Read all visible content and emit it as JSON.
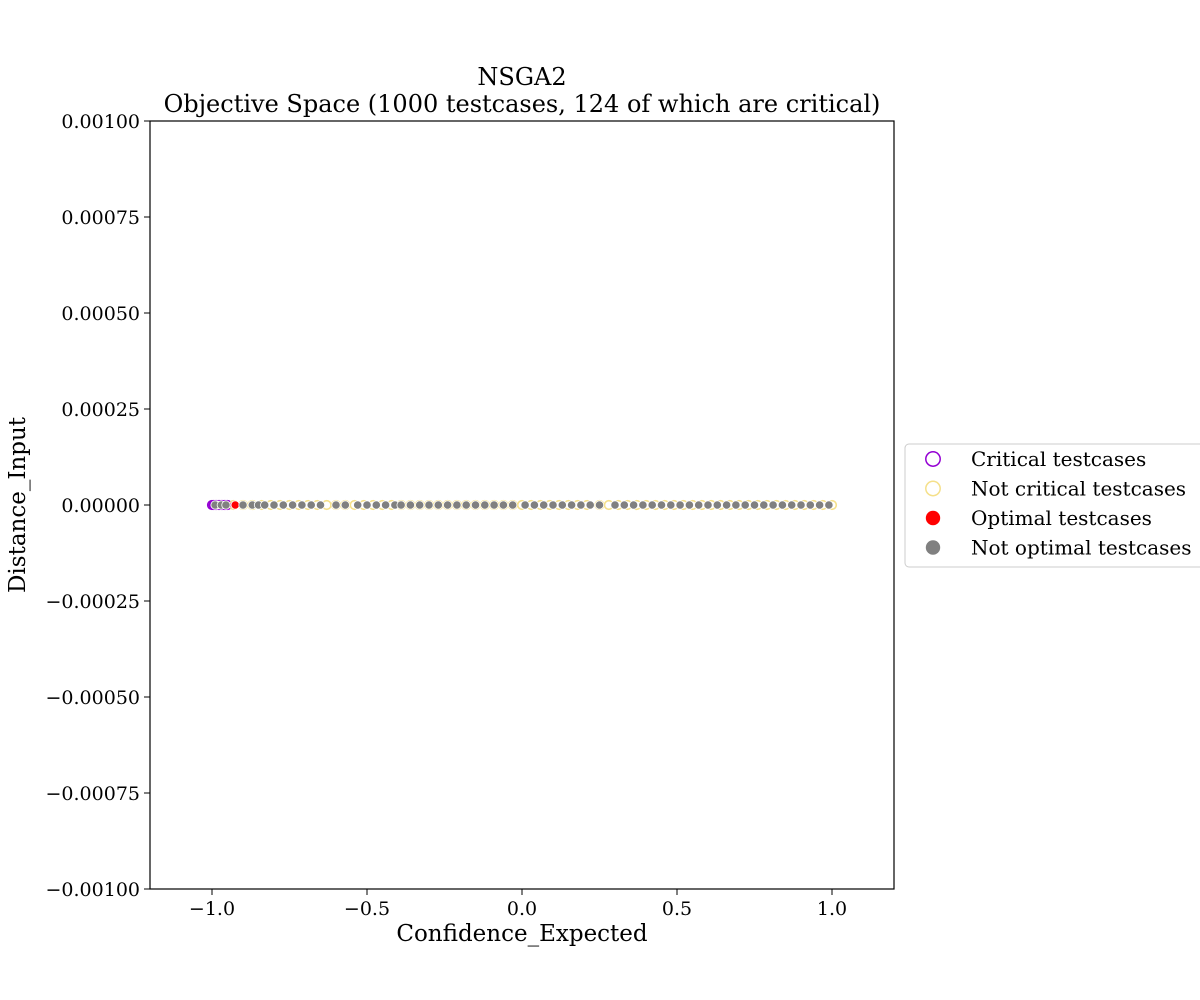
{
  "chart_data": {
    "type": "scatter",
    "title": "NSGA2",
    "subtitle": "Objective Space (1000 testcases, 124 of which are critical)",
    "xlabel": "Confidence_Expected",
    "ylabel": "Distance_Input",
    "xlim": [
      -1.2,
      1.2
    ],
    "ylim": [
      -0.001,
      0.001
    ],
    "xticks": [
      -1.0,
      -0.5,
      0.0,
      0.5,
      1.0
    ],
    "xtick_labels": [
      "−1.0",
      "−0.5",
      "0.0",
      "0.5",
      "1.0"
    ],
    "yticks": [
      0.001,
      0.00075,
      0.0005,
      0.00025,
      0.0,
      -0.00025,
      -0.0005,
      -0.00075,
      -0.001
    ],
    "ytick_labels": [
      "0.00100",
      "0.00075",
      "0.00050",
      "0.00025",
      "0.00000",
      "−0.00025",
      "−0.00050",
      "−0.00075",
      "−0.00100"
    ],
    "grid": false,
    "legend_position": "center right, outside plot",
    "legend": [
      {
        "label": "Critical testcases",
        "marker": "hollow-circle",
        "color": "#9400d3"
      },
      {
        "label": "Not critical testcases",
        "marker": "hollow-circle",
        "color": "#f5e08a"
      },
      {
        "label": "Optimal testcases",
        "marker": "filled-circle",
        "color": "#ff0000"
      },
      {
        "label": "Not optimal testcases",
        "marker": "filled-circle",
        "color": "#808080"
      }
    ],
    "series": [
      {
        "name": "Critical testcases",
        "marker": "hollow-circle",
        "color": "#9400d3",
        "points": [
          [
            -1.0,
            0
          ],
          [
            -0.995,
            0
          ],
          [
            -0.99,
            0
          ],
          [
            -0.985,
            0
          ],
          [
            -0.98,
            0
          ],
          [
            -0.975,
            0
          ],
          [
            -0.97,
            0
          ],
          [
            -0.965,
            0
          ],
          [
            -0.96,
            0
          ],
          [
            -0.955,
            0
          ],
          [
            -0.95,
            0
          ]
        ]
      },
      {
        "name": "Not critical testcases",
        "marker": "hollow-circle",
        "color": "#f5e08a",
        "points": [
          [
            -0.93,
            0
          ],
          [
            -0.9,
            0
          ],
          [
            -0.87,
            0
          ],
          [
            -0.84,
            0
          ],
          [
            -0.81,
            0
          ],
          [
            -0.78,
            0
          ],
          [
            -0.75,
            0
          ],
          [
            -0.72,
            0
          ],
          [
            -0.69,
            0
          ],
          [
            -0.66,
            0
          ],
          [
            -0.63,
            0
          ],
          [
            -0.6,
            0
          ],
          [
            -0.57,
            0
          ],
          [
            -0.54,
            0
          ],
          [
            -0.51,
            0
          ],
          [
            -0.48,
            0
          ],
          [
            -0.45,
            0
          ],
          [
            -0.42,
            0
          ],
          [
            -0.39,
            0
          ],
          [
            -0.36,
            0
          ],
          [
            -0.33,
            0
          ],
          [
            -0.3,
            0
          ],
          [
            -0.27,
            0
          ],
          [
            -0.24,
            0
          ],
          [
            -0.21,
            0
          ],
          [
            -0.18,
            0
          ],
          [
            -0.15,
            0
          ],
          [
            -0.12,
            0
          ],
          [
            -0.09,
            0
          ],
          [
            -0.06,
            0
          ],
          [
            -0.03,
            0
          ],
          [
            0.0,
            0
          ],
          [
            0.03,
            0
          ],
          [
            0.06,
            0
          ],
          [
            0.09,
            0
          ],
          [
            0.12,
            0
          ],
          [
            0.15,
            0
          ],
          [
            0.18,
            0
          ],
          [
            0.21,
            0
          ],
          [
            0.25,
            0
          ],
          [
            0.28,
            0
          ],
          [
            0.31,
            0
          ],
          [
            0.34,
            0
          ],
          [
            0.37,
            0
          ],
          [
            0.4,
            0
          ],
          [
            0.43,
            0
          ],
          [
            0.46,
            0
          ],
          [
            0.49,
            0
          ],
          [
            0.52,
            0
          ],
          [
            0.55,
            0
          ],
          [
            0.58,
            0
          ],
          [
            0.61,
            0
          ],
          [
            0.64,
            0
          ],
          [
            0.67,
            0
          ],
          [
            0.7,
            0
          ],
          [
            0.73,
            0
          ],
          [
            0.76,
            0
          ],
          [
            0.79,
            0
          ],
          [
            0.82,
            0
          ],
          [
            0.85,
            0
          ],
          [
            0.88,
            0
          ],
          [
            0.91,
            0
          ],
          [
            0.94,
            0
          ],
          [
            0.97,
            0
          ],
          [
            1.0,
            0
          ]
        ]
      },
      {
        "name": "Optimal testcases",
        "marker": "filled-circle",
        "color": "#ff0000",
        "points": [
          [
            -0.985,
            0
          ],
          [
            -0.925,
            0
          ]
        ]
      },
      {
        "name": "Not optimal testcases",
        "marker": "filled-circle",
        "color": "#808080",
        "points": [
          [
            -0.99,
            0
          ],
          [
            -0.97,
            0
          ],
          [
            -0.955,
            0
          ],
          [
            -0.9,
            0
          ],
          [
            -0.87,
            0
          ],
          [
            -0.85,
            0
          ],
          [
            -0.83,
            0
          ],
          [
            -0.8,
            0
          ],
          [
            -0.77,
            0
          ],
          [
            -0.74,
            0
          ],
          [
            -0.71,
            0
          ],
          [
            -0.68,
            0
          ],
          [
            -0.65,
            0
          ],
          [
            -0.6,
            0
          ],
          [
            -0.57,
            0
          ],
          [
            -0.53,
            0
          ],
          [
            -0.5,
            0
          ],
          [
            -0.47,
            0
          ],
          [
            -0.44,
            0
          ],
          [
            -0.41,
            0
          ],
          [
            -0.39,
            0
          ],
          [
            -0.36,
            0
          ],
          [
            -0.33,
            0
          ],
          [
            -0.3,
            0
          ],
          [
            -0.27,
            0
          ],
          [
            -0.24,
            0
          ],
          [
            -0.21,
            0
          ],
          [
            -0.18,
            0
          ],
          [
            -0.15,
            0
          ],
          [
            -0.12,
            0
          ],
          [
            -0.09,
            0
          ],
          [
            -0.06,
            0
          ],
          [
            -0.03,
            0
          ],
          [
            0.01,
            0
          ],
          [
            0.04,
            0
          ],
          [
            0.07,
            0
          ],
          [
            0.1,
            0
          ],
          [
            0.13,
            0
          ],
          [
            0.16,
            0
          ],
          [
            0.19,
            0
          ],
          [
            0.22,
            0
          ],
          [
            0.25,
            0
          ],
          [
            0.3,
            0
          ],
          [
            0.33,
            0
          ],
          [
            0.36,
            0
          ],
          [
            0.39,
            0
          ],
          [
            0.42,
            0
          ],
          [
            0.45,
            0
          ],
          [
            0.48,
            0
          ],
          [
            0.51,
            0
          ],
          [
            0.54,
            0
          ],
          [
            0.57,
            0
          ],
          [
            0.6,
            0
          ],
          [
            0.63,
            0
          ],
          [
            0.66,
            0
          ],
          [
            0.69,
            0
          ],
          [
            0.72,
            0
          ],
          [
            0.75,
            0
          ],
          [
            0.78,
            0
          ],
          [
            0.81,
            0
          ],
          [
            0.84,
            0
          ],
          [
            0.87,
            0
          ],
          [
            0.9,
            0
          ],
          [
            0.93,
            0
          ],
          [
            0.96,
            0
          ],
          [
            0.99,
            0
          ]
        ]
      }
    ]
  }
}
